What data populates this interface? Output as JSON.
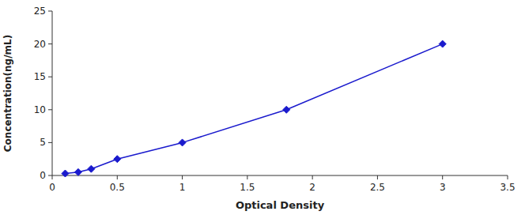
{
  "chart_data": {
    "type": "line",
    "x": [
      0.1,
      0.2,
      0.3,
      0.5,
      1.0,
      1.8,
      3.0
    ],
    "values": [
      0.3,
      0.5,
      1.0,
      2.5,
      5.0,
      10.0,
      20.0
    ],
    "color": "#1a1acd",
    "marker": "diamond",
    "line_style": "solid",
    "xlabel": "Optical Density",
    "ylabel": "Concentration(ng/mL)",
    "xlim": [
      0,
      3.5
    ],
    "ylim": [
      0,
      25
    ],
    "xticks": [
      0,
      0.5,
      1,
      1.5,
      2,
      2.5,
      3,
      3.5
    ],
    "yticks": [
      0,
      5,
      10,
      15,
      20,
      25
    ],
    "grid": false
  }
}
